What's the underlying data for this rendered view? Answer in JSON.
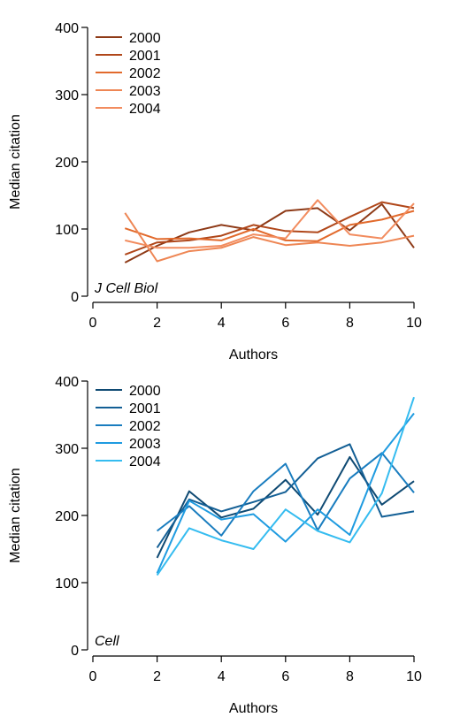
{
  "chart_data": [
    {
      "type": "line",
      "panel_label": "J Cell Biol",
      "xlabel": "Authors",
      "ylabel": "Median citation",
      "xlim": [
        0,
        10
      ],
      "ylim": [
        0,
        400
      ],
      "xticks": [
        0,
        2,
        4,
        6,
        8,
        10
      ],
      "yticks": [
        0,
        100,
        200,
        300,
        400
      ],
      "x": [
        1,
        2,
        3,
        4,
        5,
        6,
        7,
        8,
        9,
        10
      ],
      "legend_position": "top-left",
      "series": [
        {
          "name": "2000",
          "color": "#8e3a17",
          "values": [
            50,
            75,
            95,
            106,
            98,
            127,
            131,
            98,
            137,
            72
          ]
        },
        {
          "name": "2001",
          "color": "#b0471a",
          "values": [
            62,
            80,
            83,
            90,
            106,
            97,
            95,
            118,
            140,
            131
          ]
        },
        {
          "name": "2002",
          "color": "#e26a2c",
          "values": [
            101,
            85,
            86,
            83,
            100,
            83,
            82,
            106,
            114,
            127
          ]
        },
        {
          "name": "2003",
          "color": "#ee8654",
          "values": [
            124,
            52,
            67,
            72,
            88,
            76,
            80,
            75,
            80,
            90
          ]
        },
        {
          "name": "2004",
          "color": "#f28c5f",
          "values": [
            83,
            72,
            72,
            75,
            92,
            86,
            143,
            92,
            86,
            138
          ]
        }
      ]
    },
    {
      "type": "line",
      "panel_label": "Cell",
      "xlabel": "Authors",
      "ylabel": "Median citation",
      "xlim": [
        0,
        10
      ],
      "ylim": [
        0,
        400
      ],
      "xticks": [
        0,
        2,
        4,
        6,
        8,
        10
      ],
      "yticks": [
        0,
        100,
        200,
        300,
        400
      ],
      "x": [
        2,
        3,
        4,
        5,
        6,
        7,
        8,
        9,
        10
      ],
      "legend_position": "top-left",
      "series": [
        {
          "name": "2000",
          "color": "#0f4a73",
          "values": [
            137,
            236,
            197,
            210,
            253,
            201,
            287,
            216,
            251
          ]
        },
        {
          "name": "2001",
          "color": "#135f95",
          "values": [
            152,
            224,
            206,
            220,
            235,
            285,
            306,
            198,
            206
          ]
        },
        {
          "name": "2002",
          "color": "#1a7dbf",
          "values": [
            177,
            214,
            170,
            236,
            277,
            178,
            255,
            293,
            234
          ]
        },
        {
          "name": "2003",
          "color": "#1f9be0",
          "values": [
            114,
            222,
            194,
            202,
            161,
            209,
            171,
            291,
            352
          ]
        },
        {
          "name": "2004",
          "color": "#35bcf0",
          "values": [
            111,
            181,
            163,
            150,
            209,
            177,
            160,
            233,
            376
          ]
        }
      ]
    }
  ]
}
